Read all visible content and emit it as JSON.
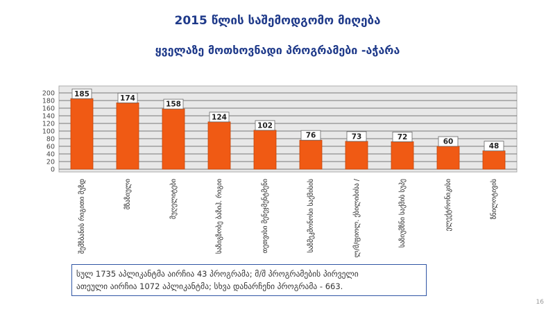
{
  "title_line1": "2015 წლის საშემოდგომო მიღება",
  "title_line2": "ყველაზე მოთხოვნადი პროგრამები -აჭარა",
  "note_line1": "სულ 1735 აპლიკანტმა აირჩია 43 პროგრამა; მ/შ პროგრამების პირველი",
  "note_line2": "ათეული აირჩია 1072 აპლიკანტმა; სხვა დანარჩენი პროგრამა - 663.",
  "page_number": "16",
  "colors": {
    "bar": "#f05a14",
    "bar_dark": "#c44408",
    "title": "#1f3a8a",
    "frame": "#2f55a4"
  },
  "chart_data": {
    "type": "bar",
    "categories": [
      "შემზბანის რიგითი მუზდ",
      "მზაზიული",
      "მუღელიტები",
      "საზიგზობე ბაზიჰ. რიგიი",
      "თეთვისი მენეჯმენტმენი",
      "საზმეკმონოსი საქმისის",
      "ლ/მ/ფიოლ. ქბილიბისა /",
      "საზიუმზნი საქმის სუპე",
      "ელექტრონიკისი",
      "ზნილოტივის"
    ],
    "values": [
      185,
      174,
      158,
      124,
      102,
      76,
      73,
      72,
      60,
      48
    ],
    "ylim": [
      0,
      200
    ],
    "yticks": [
      0,
      20,
      40,
      60,
      80,
      100,
      120,
      140,
      160,
      180,
      200
    ],
    "grid": true,
    "data_labels": true
  }
}
